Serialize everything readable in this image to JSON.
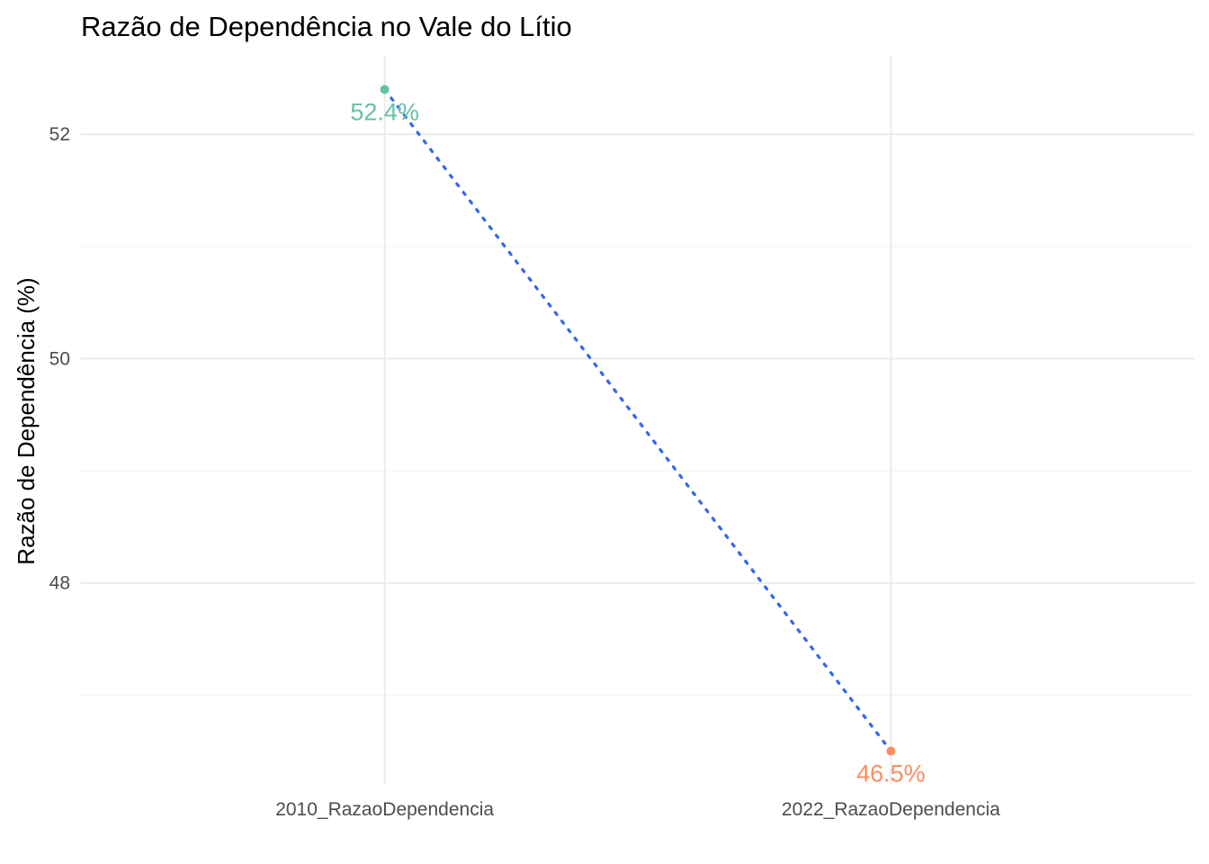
{
  "chart_data": {
    "type": "line",
    "title": "Razão de Dependência no Vale do Lítio",
    "xlabel": "",
    "ylabel": "Razão de Dependência (%)",
    "categories": [
      "2010_RazaoDependencia",
      "2022_RazaoDependencia"
    ],
    "values": [
      52.4,
      46.5
    ],
    "data_labels": [
      "52.4%",
      "46.5%"
    ],
    "point_colors": [
      "#66c2a5",
      "#fc8d62"
    ],
    "line_color": "#3366ee",
    "line_style": "dotted",
    "ylim": [
      46.2,
      52.7
    ],
    "yticks": [
      48,
      50,
      52
    ],
    "yticks_labels": [
      "48",
      "50",
      "52"
    ],
    "grid": true,
    "legend": "none"
  }
}
